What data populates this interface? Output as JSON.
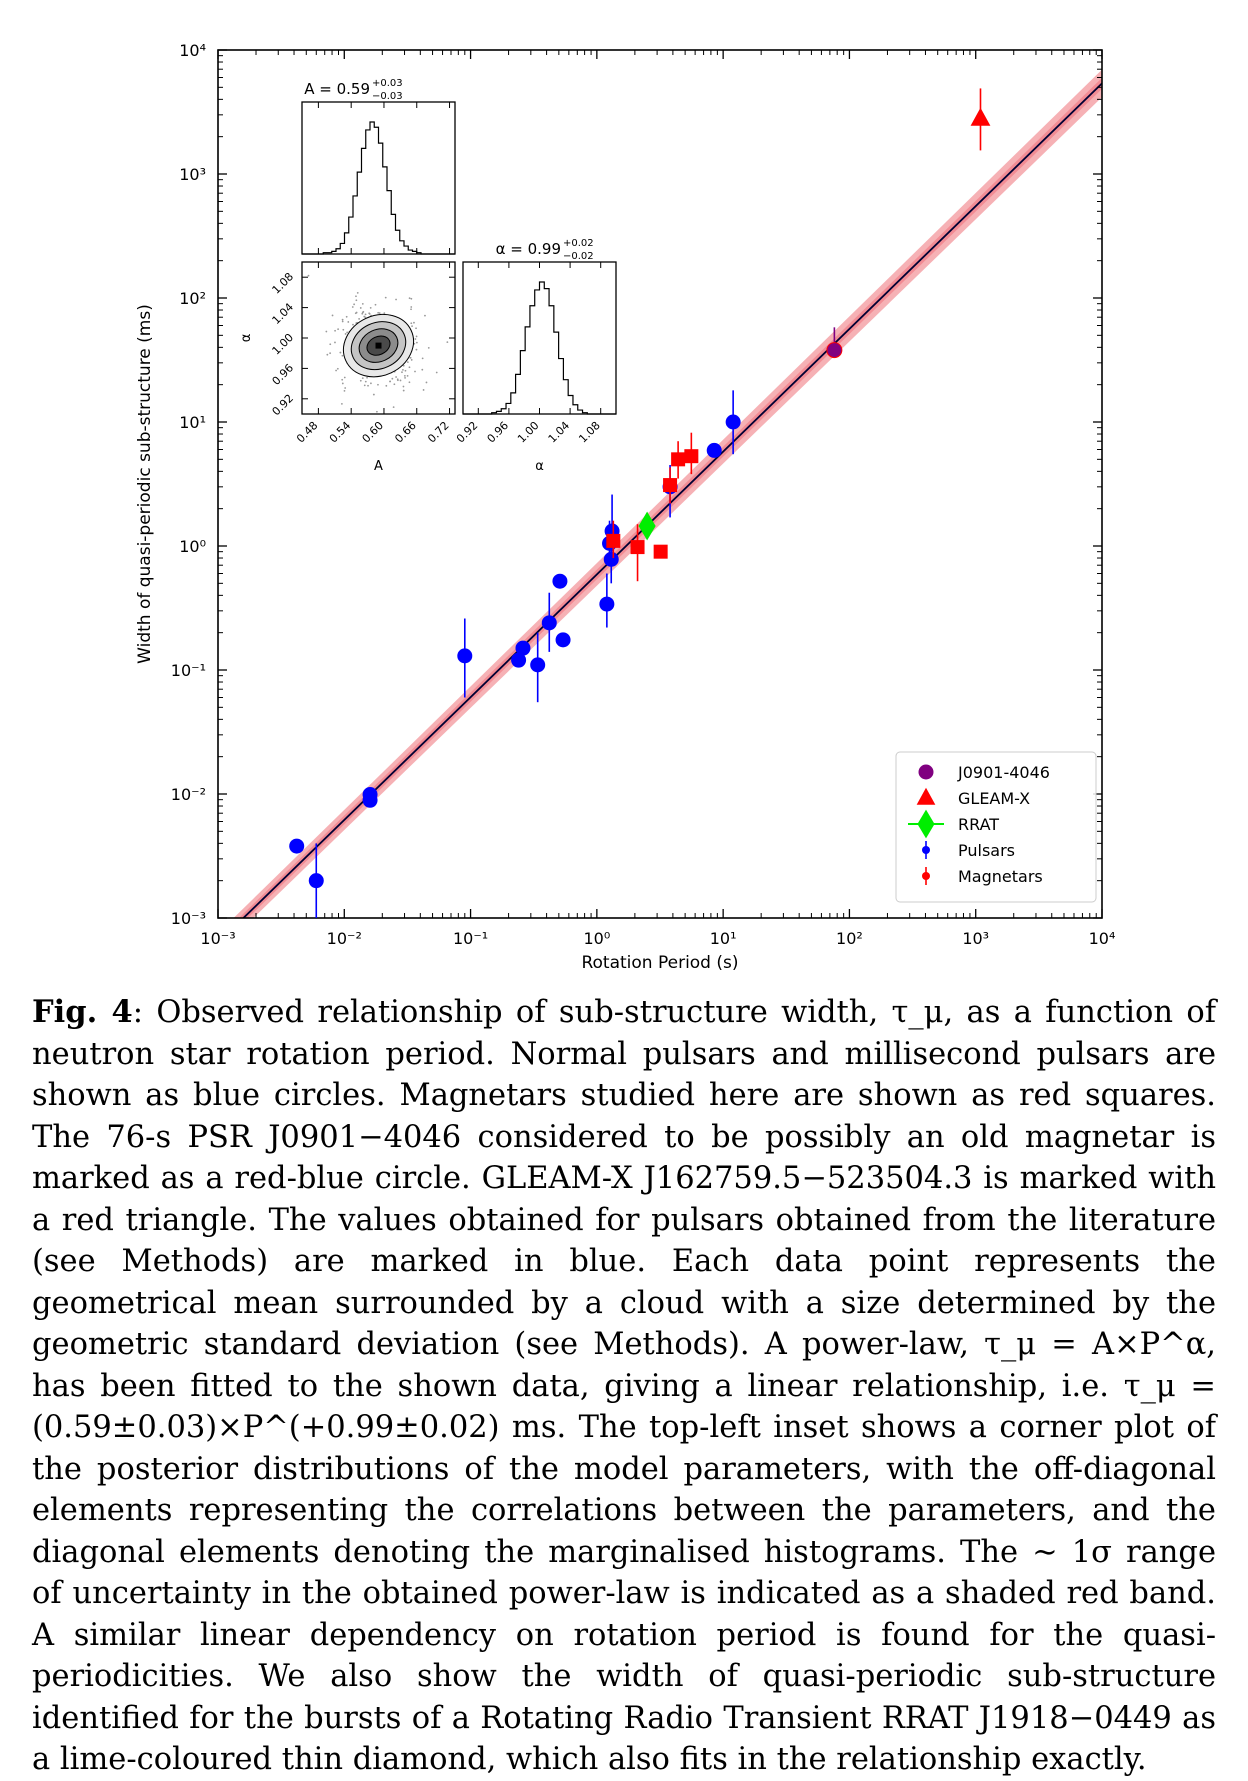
{
  "chart_data": {
    "type": "scatter",
    "xlabel": "Rotation Period (s)",
    "ylabel": "Width of quasi-periodic sub-structure (ms)",
    "xscale": "log",
    "yscale": "log",
    "xlim": [
      0.001,
      10000
    ],
    "ylim": [
      0.001,
      10000
    ],
    "x_ticks": [
      "10⁻³",
      "10⁻²",
      "10⁻¹",
      "10⁰",
      "10¹",
      "10²",
      "10³",
      "10⁴"
    ],
    "y_ticks": [
      "10⁻³",
      "10⁻²",
      "10⁻¹",
      "10⁰",
      "10¹",
      "10²",
      "10³",
      "10⁴"
    ],
    "legend_position": "bottom-right",
    "fit": {
      "A": 0.59,
      "alpha": 0.99,
      "band_color": "#f4a3a8",
      "line_color": "#000033"
    },
    "series": [
      {
        "name": "J0901-4046",
        "marker": "circle",
        "color": "#800080",
        "points": [
          {
            "x": 76,
            "y": 38,
            "ylo": 33,
            "yhi": 58
          }
        ]
      },
      {
        "name": "GLEAM-X",
        "marker": "triangle",
        "color": "#ff0000",
        "points": [
          {
            "x": 1091,
            "y": 2800,
            "ylo": 1550,
            "yhi": 4900
          }
        ]
      },
      {
        "name": "RRAT",
        "marker": "diamond",
        "color": "#00ee00",
        "points": [
          {
            "x": 2.5,
            "y": 1.45,
            "ylo": 1.15,
            "yhi": 1.85
          }
        ]
      },
      {
        "name": "Pulsars",
        "marker": "circle",
        "color": "#0000ff",
        "points": [
          {
            "x": 0.0042,
            "y": 0.0038
          },
          {
            "x": 0.006,
            "y": 0.002,
            "ylo": 0.001,
            "yhi": 0.004
          },
          {
            "x": 0.016,
            "y": 0.0099
          },
          {
            "x": 0.016,
            "y": 0.0089
          },
          {
            "x": 0.09,
            "y": 0.13,
            "ylo": 0.06,
            "yhi": 0.26
          },
          {
            "x": 0.24,
            "y": 0.12
          },
          {
            "x": 0.26,
            "y": 0.15
          },
          {
            "x": 0.34,
            "y": 0.11,
            "ylo": 0.055,
            "yhi": 0.2
          },
          {
            "x": 0.42,
            "y": 0.24,
            "ylo": 0.14,
            "yhi": 0.42
          },
          {
            "x": 0.51,
            "y": 0.52
          },
          {
            "x": 0.54,
            "y": 0.175
          },
          {
            "x": 1.2,
            "y": 0.34,
            "ylo": 0.22,
            "yhi": 0.6
          },
          {
            "x": 1.26,
            "y": 1.05,
            "ylo": 0.7,
            "yhi": 1.6
          },
          {
            "x": 1.3,
            "y": 0.78,
            "ylo": 0.5,
            "yhi": 1.25
          },
          {
            "x": 1.32,
            "y": 1.32,
            "ylo": 0.9,
            "yhi": 2.6
          },
          {
            "x": 3.8,
            "y": 3.0,
            "ylo": 1.7,
            "yhi": 4.5
          },
          {
            "x": 8.5,
            "y": 5.9
          },
          {
            "x": 12,
            "y": 10,
            "ylo": 5.5,
            "yhi": 18
          }
        ]
      },
      {
        "name": "Magnetars",
        "marker": "square",
        "color": "#ff0000",
        "points": [
          {
            "x": 1.35,
            "y": 1.1,
            "ylo": 0.8,
            "yhi": 1.6
          },
          {
            "x": 2.1,
            "y": 0.98,
            "ylo": 0.52,
            "yhi": 1.5
          },
          {
            "x": 3.2,
            "y": 0.9,
            "ylo": 0.82,
            "yhi": 0.98
          },
          {
            "x": 3.8,
            "y": 3.1,
            "ylo": 2.2,
            "yhi": 4.3
          },
          {
            "x": 4.4,
            "y": 5.0,
            "ylo": 3.5,
            "yhi": 7.0
          },
          {
            "x": 5.6,
            "y": 5.3,
            "ylo": 3.8,
            "yhi": 8.2
          }
        ]
      }
    ],
    "inset": {
      "A_label": "A",
      "alpha_label": "α",
      "A_title": "A = 0.59",
      "A_sup": "+0.03",
      "A_sub": "−0.03",
      "alpha_title": "α = 0.99",
      "alpha_sup": "+0.02",
      "alpha_sub": "−0.02",
      "A_ticks": [
        "0.48",
        "0.54",
        "0.60",
        "0.66",
        "0.72"
      ],
      "alpha_ticks": [
        "0.92",
        "0.96",
        "1.00",
        "1.04",
        "1.08"
      ],
      "A_range": [
        0.45,
        0.73
      ],
      "alpha_range": [
        0.9,
        1.1
      ],
      "A_hist": [
        0,
        0,
        0,
        0,
        0,
        1,
        1,
        2,
        4,
        8,
        16,
        28,
        44,
        62,
        80,
        94,
        100,
        96,
        84,
        66,
        48,
        30,
        18,
        10,
        6,
        3,
        2,
        1,
        0,
        0,
        0,
        0,
        0,
        0,
        0,
        0
      ],
      "alpha_hist": [
        0,
        0,
        0,
        0,
        0,
        0,
        1,
        2,
        4,
        8,
        16,
        30,
        48,
        66,
        82,
        94,
        100,
        95,
        82,
        62,
        42,
        26,
        14,
        7,
        3,
        1,
        0,
        0,
        0,
        0,
        0,
        0
      ]
    }
  },
  "caption": {
    "fig_label": "Fig. 4",
    "text": ": Observed relationship of sub-structure width, τ_μ, as a function of neutron star rotation period. Normal pulsars and millisecond pulsars are shown as blue circles. Magnetars studied here are shown as red squares. The 76-s PSR J0901−4046 considered to be possibly an old magnetar is marked as a red-blue circle. GLEAM-X J162759.5−523504.3 is marked with a red triangle. The values obtained for pulsars obtained from the literature (see Methods) are marked in blue. Each data point represents the geometrical mean surrounded by a cloud with a size determined by the geometric standard deviation (see Methods). A power-law, τ_μ = A×P^α, has been fitted to the shown data, giving a linear relationship, i.e. τ_μ = (0.59±0.03)×P^(+0.99±0.02) ms. The top-left inset shows a corner plot of the posterior distributions of the model parameters, with the off-diagonal elements representing the correlations between the parameters, and the diagonal elements denoting the marginalised histograms. The ∼ 1σ range of uncertainty in the obtained power-law is indicated as a shaded red band. A similar linear dependency on rotation period is found for the quasi-periodicities. We also show the width of quasi-periodic sub-structure identified for the bursts of a Rotating Radio Transient RRAT J1918−0449 as a lime-coloured thin diamond, which also fits in the relationship exactly."
  }
}
